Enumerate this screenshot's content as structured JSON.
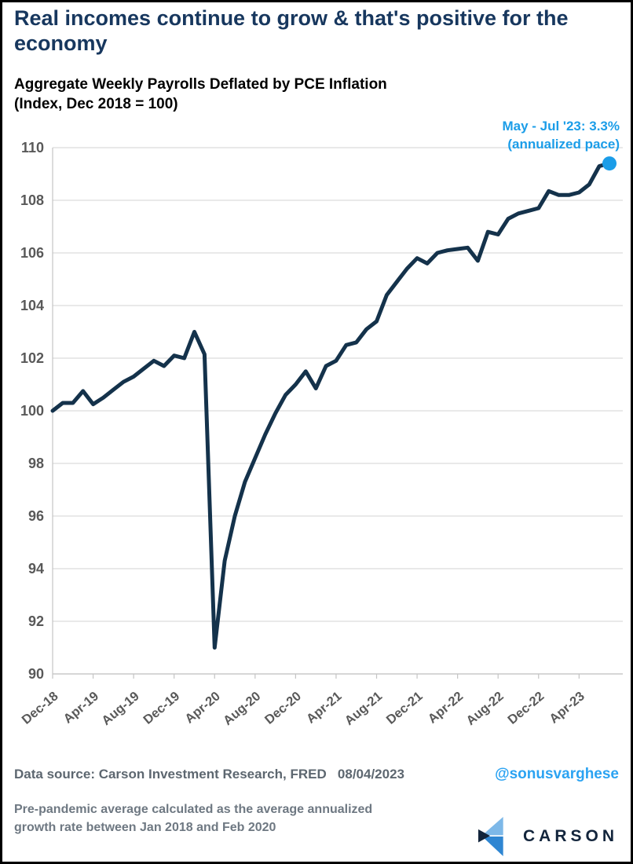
{
  "header": {
    "title": "Real incomes continue to grow & that's positive for the economy",
    "subtitle_line1": "Aggregate Weekly Payrolls Deflated by PCE Inflation",
    "subtitle_line2": "(Index, Dec 2018 = 100)"
  },
  "annotation": {
    "line1": "May - Jul '23: 3.3%",
    "line2": "(annualized pace)"
  },
  "chart_data": {
    "type": "line",
    "title": "Aggregate Weekly Payrolls Deflated by PCE Inflation (Index, Dec 2018 = 100)",
    "x": [
      "Dec-18",
      "Jan-19",
      "Feb-19",
      "Mar-19",
      "Apr-19",
      "May-19",
      "Jun-19",
      "Jul-19",
      "Aug-19",
      "Sep-19",
      "Oct-19",
      "Nov-19",
      "Dec-19",
      "Jan-20",
      "Feb-20",
      "Mar-20",
      "Apr-20",
      "May-20",
      "Jun-20",
      "Jul-20",
      "Aug-20",
      "Sep-20",
      "Oct-20",
      "Nov-20",
      "Dec-20",
      "Jan-21",
      "Feb-21",
      "Mar-21",
      "Apr-21",
      "May-21",
      "Jun-21",
      "Jul-21",
      "Aug-21",
      "Sep-21",
      "Oct-21",
      "Nov-21",
      "Dec-21",
      "Jan-22",
      "Feb-22",
      "Mar-22",
      "Apr-22",
      "May-22",
      "Jun-22",
      "Jul-22",
      "Aug-22",
      "Sep-22",
      "Oct-22",
      "Nov-22",
      "Dec-22",
      "Jan-23",
      "Feb-23",
      "Mar-23",
      "Apr-23",
      "May-23",
      "Jun-23",
      "Jul-23"
    ],
    "values": [
      100.0,
      100.3,
      100.3,
      100.75,
      100.25,
      100.5,
      100.8,
      101.1,
      101.3,
      101.6,
      101.9,
      101.7,
      102.1,
      102.0,
      103.0,
      102.15,
      91.0,
      94.3,
      96.0,
      97.3,
      98.2,
      99.1,
      99.9,
      100.6,
      101.0,
      101.5,
      100.85,
      101.7,
      101.9,
      102.5,
      102.6,
      103.1,
      103.4,
      104.4,
      104.9,
      105.4,
      105.8,
      105.6,
      106.0,
      106.1,
      106.15,
      106.2,
      105.7,
      106.8,
      106.7,
      107.3,
      107.5,
      107.6,
      107.7,
      108.35,
      108.2,
      108.2,
      108.3,
      108.6,
      109.3,
      109.4
    ],
    "x_tick_labels": [
      "Dec-18",
      "Apr-19",
      "Aug-19",
      "Dec-19",
      "Apr-20",
      "Aug-20",
      "Dec-20",
      "Apr-21",
      "Aug-21",
      "Dec-21",
      "Apr-22",
      "Aug-22",
      "Dec-22",
      "Apr-23"
    ],
    "x_tick_every": 4,
    "ylim": [
      90,
      110
    ],
    "y_tick_step": 2,
    "grid": "horizontal",
    "legend": "none",
    "annotation_on_last_point": "May - Jul '23: 3.3% (annualized pace)"
  },
  "footer": {
    "data_source": "Data source: Carson Investment Research, FRED   08/04/2023",
    "handle": "@sonusvarghese",
    "footnote": "Pre-pandemic average calculated as the average annualized\ngrowth rate between Jan 2018 and Feb 2020",
    "logo_text": "CARSON"
  },
  "colors": {
    "title_navy": "#17375e",
    "line_navy": "#14324b",
    "accent_blue": "#1b9de8",
    "handle_blue": "#2ba3f2",
    "axis_label_gray": "#595959",
    "grid_gray": "#dcdcdc",
    "axis_line_gray": "#c4c4c4",
    "logo_navy": "#13253c",
    "logo_light_blue": "#7db8e8",
    "logo_mid_blue": "#2f86d2"
  }
}
